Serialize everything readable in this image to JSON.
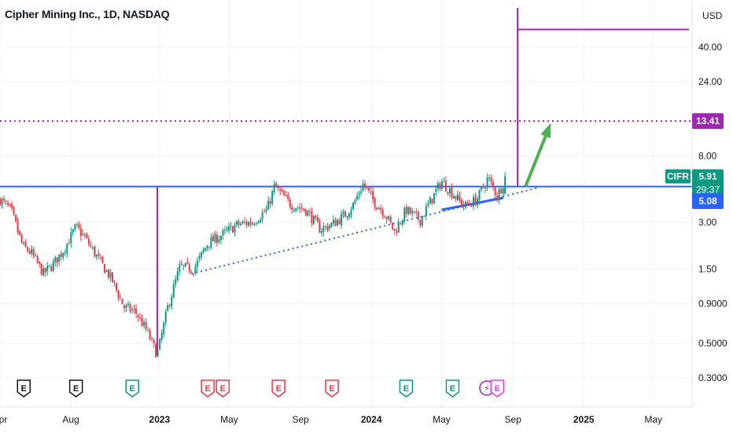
{
  "title": "Cipher Mining Inc., 1D, NASDAQ",
  "currency": "USD",
  "chart_data": {
    "type": "line",
    "symbol": "CIFR",
    "y_scale": "log",
    "ylim": [
      0.24,
      70
    ],
    "x_range": [
      "2022-04-01",
      "2025-06-30"
    ],
    "y_ticks": [
      "40.00",
      "24.00",
      "13.41",
      "8.00",
      "3.00",
      "1.50",
      "0.9000",
      "0.5000",
      "0.3000"
    ],
    "x_ticks": [
      {
        "label": "Apr",
        "date": "2022-04-01",
        "bold": false
      },
      {
        "label": "Aug",
        "date": "2022-08-01",
        "bold": false
      },
      {
        "label": "2023",
        "date": "2023-01-01",
        "bold": true
      },
      {
        "label": "May",
        "date": "2023-05-01",
        "bold": false
      },
      {
        "label": "Sep",
        "date": "2023-09-01",
        "bold": false
      },
      {
        "label": "2024",
        "date": "2024-01-01",
        "bold": true
      },
      {
        "label": "May",
        "date": "2024-05-01",
        "bold": false
      },
      {
        "label": "Sep",
        "date": "2024-09-01",
        "bold": false
      },
      {
        "label": "2025",
        "date": "2025-01-01",
        "bold": true
      },
      {
        "label": "May",
        "date": "2025-05-01",
        "bold": false
      }
    ],
    "price_path": [
      [
        "2022-04-01",
        4.2
      ],
      [
        "2022-04-20",
        3.6
      ],
      [
        "2022-05-10",
        2.1
      ],
      [
        "2022-05-25",
        1.9
      ],
      [
        "2022-06-15",
        1.4
      ],
      [
        "2022-07-01",
        1.6
      ],
      [
        "2022-07-20",
        2.0
      ],
      [
        "2022-08-10",
        2.8
      ],
      [
        "2022-08-25",
        2.4
      ],
      [
        "2022-09-15",
        1.8
      ],
      [
        "2022-10-10",
        1.3
      ],
      [
        "2022-11-01",
        0.85
      ],
      [
        "2022-11-20",
        0.8
      ],
      [
        "2022-12-10",
        0.6
      ],
      [
        "2022-12-28",
        0.42
      ],
      [
        "2023-01-15",
        0.85
      ],
      [
        "2023-02-05",
        1.55
      ],
      [
        "2023-03-01",
        1.5
      ],
      [
        "2023-03-25",
        2.2
      ],
      [
        "2023-04-20",
        2.5
      ],
      [
        "2023-05-15",
        2.9
      ],
      [
        "2023-06-10",
        3.0
      ],
      [
        "2023-07-05",
        3.6
      ],
      [
        "2023-07-18",
        5.1
      ],
      [
        "2023-08-15",
        3.9
      ],
      [
        "2023-09-10",
        3.6
      ],
      [
        "2023-10-05",
        2.7
      ],
      [
        "2023-10-25",
        2.9
      ],
      [
        "2023-11-15",
        3.3
      ],
      [
        "2023-12-01",
        3.9
      ],
      [
        "2023-12-18",
        5.3
      ],
      [
        "2024-01-05",
        4.1
      ],
      [
        "2024-01-25",
        3.4
      ],
      [
        "2024-02-10",
        2.6
      ],
      [
        "2024-03-01",
        3.6
      ],
      [
        "2024-03-25",
        3.1
      ],
      [
        "2024-04-15",
        4.3
      ],
      [
        "2024-05-01",
        5.5
      ],
      [
        "2024-05-20",
        4.6
      ],
      [
        "2024-06-10",
        3.8
      ],
      [
        "2024-07-01",
        4.2
      ],
      [
        "2024-07-20",
        5.8
      ],
      [
        "2024-08-05",
        4.4
      ],
      [
        "2024-08-20",
        5.91
      ]
    ],
    "annotations": {
      "current_price": "5.91",
      "countdown": "29:37",
      "horizontal_level": "5.08",
      "target_level": "13.41",
      "top_level_value": 52,
      "resistance_value": 5.08
    },
    "event_markers": [
      {
        "date": "2022-05-12",
        "label": "E",
        "color": "#131722"
      },
      {
        "date": "2022-08-10",
        "label": "E",
        "color": "#131722"
      },
      {
        "date": "2022-11-15",
        "label": "E",
        "color": "#089981"
      },
      {
        "date": "2023-03-25",
        "label": "E",
        "color": "#f23645"
      },
      {
        "date": "2023-04-20",
        "label": "E",
        "color": "#f23645"
      },
      {
        "date": "2023-07-25",
        "label": "E",
        "color": "#f23645"
      },
      {
        "date": "2023-10-25",
        "label": "E",
        "color": "#f23645"
      },
      {
        "date": "2024-03-01",
        "label": "E",
        "color": "#089981"
      },
      {
        "date": "2024-05-20",
        "label": "E",
        "color": "#089981"
      },
      {
        "date": "2024-07-18",
        "label": "⚡",
        "color": "#9c27b0"
      },
      {
        "date": "2024-08-05",
        "label": "E",
        "color": "#e040fb"
      }
    ]
  },
  "colors": {
    "up": "#089981",
    "down": "#f23645",
    "blue_line": "#2962ff",
    "purple": "#9c27b0",
    "green_arrow": "#4caf50",
    "axis_text": "#131722",
    "grid": "#f0f3fa"
  }
}
